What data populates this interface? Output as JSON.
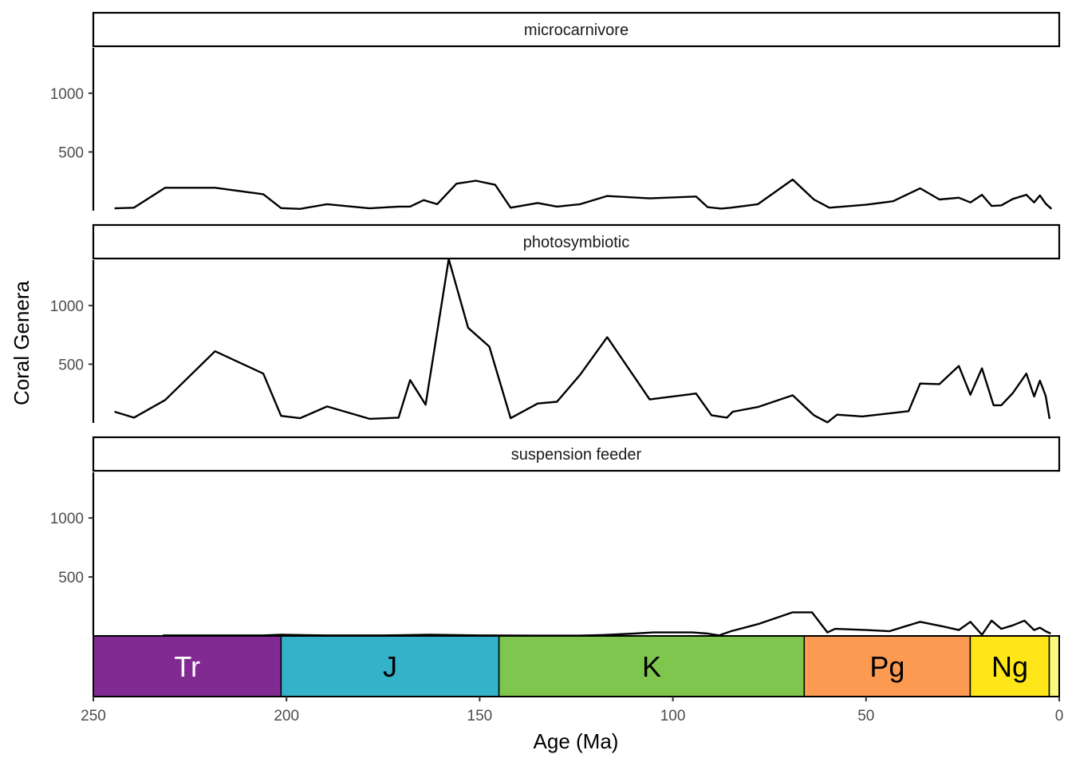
{
  "chart_data": {
    "type": "line",
    "facets": [
      "microcarnivore",
      "photosymbiotic",
      "suspension feeder"
    ],
    "xlabel": "Age (Ma)",
    "ylabel": "Coral Genera",
    "xlim": [
      250,
      0
    ],
    "ylim": [
      0,
      1400
    ],
    "x_ticks": [
      250,
      200,
      150,
      100,
      50,
      0
    ],
    "y_ticks": [
      500,
      1000
    ],
    "grid": false,
    "line_color": "#000000",
    "series": [
      {
        "name": "microcarnivore",
        "x": [
          244.5,
          239.5,
          231.4,
          218.5,
          206,
          201.4,
          196.5,
          189.5,
          178.5,
          171,
          168,
          164.5,
          161,
          156,
          151,
          146,
          142,
          135,
          130,
          124,
          117,
          106,
          94,
          91,
          87.5,
          85,
          78,
          69,
          63.5,
          59.5,
          50,
          43,
          36,
          31,
          26,
          23,
          20,
          17.5,
          15,
          12,
          8.5,
          6.5,
          5,
          3.5,
          2
        ],
        "y": [
          20,
          25,
          195,
          195,
          140,
          22,
          15,
          55,
          20,
          35,
          35,
          90,
          55,
          230,
          255,
          220,
          25,
          65,
          35,
          55,
          125,
          105,
          120,
          30,
          18,
          25,
          55,
          265,
          95,
          25,
          50,
          80,
          190,
          95,
          110,
          70,
          135,
          40,
          45,
          100,
          135,
          70,
          130,
          60,
          15
        ]
      },
      {
        "name": "photosymbiotic",
        "x": [
          244.5,
          239.5,
          231.4,
          218.5,
          206,
          201.4,
          196.5,
          189.5,
          178.5,
          171,
          168,
          164,
          158,
          153,
          147.5,
          142,
          135,
          130,
          124,
          117,
          106,
          94,
          90,
          86,
          84.5,
          78,
          69,
          63.5,
          60,
          57.5,
          51,
          39,
          36,
          31,
          26,
          23,
          20,
          17,
          15,
          12,
          8.5,
          6.5,
          5,
          3.5,
          2.5
        ],
        "y": [
          95,
          45,
          195,
          610,
          420,
          60,
          40,
          140,
          35,
          45,
          365,
          155,
          1395,
          810,
          650,
          40,
          165,
          180,
          410,
          730,
          200,
          250,
          65,
          45,
          95,
          135,
          235,
          65,
          5,
          70,
          55,
          100,
          335,
          330,
          485,
          240,
          465,
          150,
          150,
          255,
          420,
          225,
          360,
          230,
          35
        ]
      },
      {
        "name": "suspension feeder",
        "x": [
          232,
          206,
          201.4,
          190,
          175,
          163,
          150,
          135,
          124,
          118,
          110,
          105,
          100,
          95,
          91,
          88,
          85,
          78,
          69,
          64,
          60,
          58,
          50,
          44,
          40,
          36,
          30,
          26,
          23,
          20,
          17.5,
          15,
          12,
          9,
          6.5,
          5,
          3.5,
          2.2
        ],
        "y": [
          5,
          5,
          10,
          5,
          5,
          10,
          5,
          3,
          3,
          8,
          20,
          30,
          30,
          30,
          20,
          5,
          40,
          100,
          200,
          200,
          30,
          60,
          50,
          40,
          80,
          120,
          80,
          50,
          120,
          10,
          130,
          60,
          90,
          130,
          50,
          70,
          40,
          20
        ]
      }
    ],
    "timescale": [
      {
        "label": "Tr",
        "start": 251.9,
        "end": 201.4,
        "color": "#812B92",
        "text_color": "#ffffff"
      },
      {
        "label": "J",
        "start": 201.4,
        "end": 145.0,
        "color": "#34B2C9",
        "text_color": "#000000"
      },
      {
        "label": "K",
        "start": 145.0,
        "end": 66.0,
        "color": "#7FC64E",
        "text_color": "#000000"
      },
      {
        "label": "Pg",
        "start": 66.0,
        "end": 23.03,
        "color": "#FD9A52",
        "text_color": "#000000"
      },
      {
        "label": "Ng",
        "start": 23.03,
        "end": 2.58,
        "color": "#FFE619",
        "text_color": "#000000"
      },
      {
        "label": "",
        "start": 2.58,
        "end": 0,
        "color": "#F9F97F",
        "text_color": "#000000"
      }
    ]
  }
}
